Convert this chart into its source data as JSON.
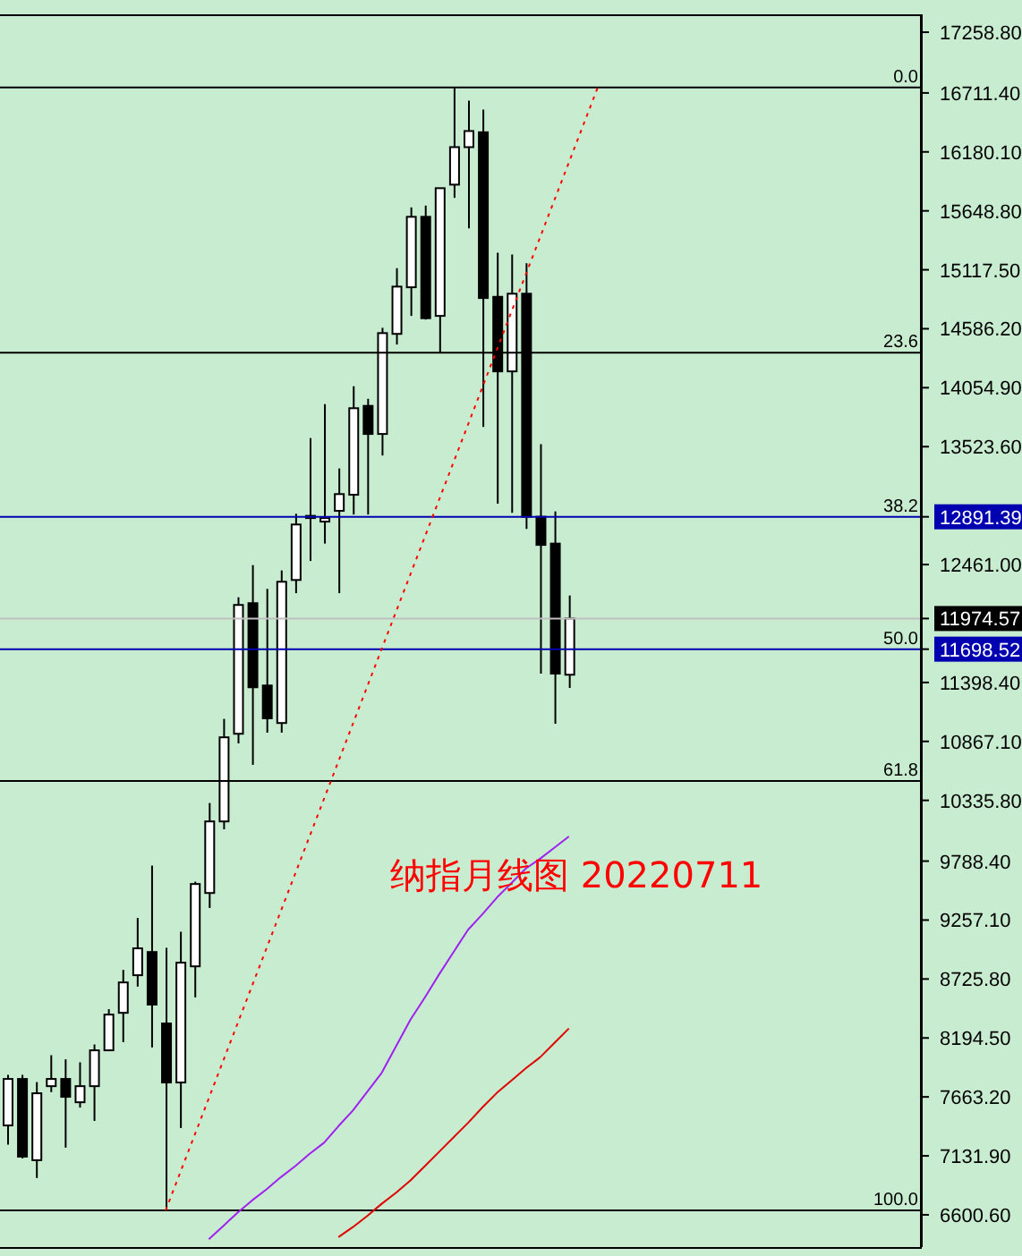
{
  "chart_data": {
    "type": "candlestick",
    "title": "纳指月线图 20220711",
    "categories": [
      null,
      null,
      null,
      null,
      null,
      null,
      null,
      null,
      null,
      null,
      null,
      null,
      null,
      null,
      null,
      null,
      null,
      null,
      null,
      null,
      null,
      null,
      null,
      null,
      null,
      null,
      null,
      null,
      null,
      null,
      null,
      null,
      null,
      null,
      null,
      null,
      null,
      null,
      null,
      null,
      null,
      null,
      null,
      null,
      null,
      null,
      null,
      null,
      null,
      null,
      null,
      null,
      null,
      null,
      null,
      null,
      null,
      null,
      null,
      null,
      null,
      null,
      null,
      null
    ],
    "ohlc": [
      [
        7406,
        7862,
        7233,
        7825
      ],
      [
        7825,
        7862,
        7109,
        7125
      ],
      [
        7093,
        7797,
        6932,
        7696
      ],
      [
        7760,
        8039,
        7706,
        7825
      ],
      [
        7825,
        8002,
        7206,
        7664
      ],
      [
        7615,
        7975,
        7567,
        7760
      ],
      [
        7760,
        8136,
        7447,
        8083
      ],
      [
        8083,
        8454,
        8083,
        8405
      ],
      [
        8421,
        8808,
        8157,
        8695
      ],
      [
        8760,
        9276,
        8657,
        9002
      ],
      [
        8969,
        9748,
        8109,
        8495
      ],
      [
        8325,
        9007,
        6640,
        7793
      ],
      [
        7793,
        9152,
        7383,
        8873
      ],
      [
        8840,
        9603,
        8560,
        9582
      ],
      [
        9501,
        10312,
        9366,
        10146
      ],
      [
        10146,
        11070,
        10075,
        10904
      ],
      [
        10936,
        12166,
        10849,
        12097
      ],
      [
        12113,
        12456,
        10656,
        11355
      ],
      [
        11371,
        12242,
        10946,
        11075
      ],
      [
        11033,
        12408,
        10946,
        12306
      ],
      [
        12322,
        12919,
        12203,
        12822
      ],
      [
        12880,
        13601,
        12493,
        12900
      ],
      [
        12848,
        13907,
        12650,
        12880
      ],
      [
        12945,
        13327,
        12203,
        13096
      ],
      [
        13090,
        14068,
        12912,
        13870
      ],
      [
        13891,
        13955,
        12912,
        13638
      ],
      [
        13638,
        14595,
        13444,
        14547
      ],
      [
        14540,
        15132,
        14444,
        14966
      ],
      [
        14960,
        15680,
        14702,
        15595
      ],
      [
        15595,
        15696,
        14669,
        14681
      ],
      [
        14702,
        15853,
        14370,
        15853
      ],
      [
        15885,
        16760,
        15766,
        16223
      ],
      [
        16223,
        16642,
        15491,
        16368
      ],
      [
        16357,
        16562,
        13702,
        14863
      ],
      [
        14874,
        15272,
        13009,
        14202
      ],
      [
        14202,
        15256,
        12928,
        14902
      ],
      [
        14902,
        15176,
        12783,
        12892
      ],
      [
        12892,
        13547,
        11478,
        12638
      ],
      [
        12650,
        12940,
        11026,
        11478
      ],
      [
        11468,
        12182,
        11349,
        11975
      ],
      null,
      null,
      null,
      null,
      null,
      null,
      null,
      null,
      null,
      null,
      null,
      null,
      null,
      null,
      null,
      null,
      null,
      null,
      null,
      null,
      null,
      null,
      null,
      null
    ],
    "series": [
      {
        "type": "line",
        "color": "#a020f0",
        "values": [
          null,
          null,
          null,
          null,
          null,
          null,
          null,
          null,
          null,
          null,
          null,
          null,
          null,
          null,
          6380,
          6500,
          6620,
          6730,
          6830,
          6940,
          7040,
          7150,
          7250,
          7400,
          7540,
          7710,
          7880,
          8120,
          8360,
          8560,
          8770,
          8970,
          9170,
          9310,
          9460,
          9590,
          9720,
          9810,
          9910,
          10010,
          null,
          null,
          null,
          null,
          null,
          null,
          null,
          null,
          null,
          null,
          null,
          null,
          null,
          null,
          null,
          null,
          null,
          null,
          null,
          null,
          null,
          null,
          null,
          null
        ]
      },
      {
        "type": "line",
        "color": "#e00000",
        "values": [
          null,
          null,
          null,
          null,
          null,
          null,
          null,
          null,
          null,
          null,
          null,
          null,
          null,
          null,
          null,
          null,
          null,
          null,
          null,
          null,
          null,
          null,
          null,
          6400,
          6490,
          6590,
          6700,
          6800,
          6910,
          7040,
          7170,
          7300,
          7430,
          7570,
          7700,
          7810,
          7920,
          8020,
          8150,
          8280,
          null,
          null,
          null,
          null,
          null,
          null,
          null,
          null,
          null,
          null,
          null,
          null,
          null,
          null,
          null,
          null,
          null,
          null,
          null,
          null,
          null,
          null,
          null,
          null
        ]
      },
      {
        "type": "line",
        "color": "#ff0000",
        "line_style": "dotted",
        "values": [
          null,
          null,
          null,
          null,
          null,
          null,
          null,
          null,
          null,
          null,
          null,
          6640,
          null,
          null,
          null,
          null,
          null,
          null,
          null,
          null,
          null,
          null,
          null,
          null,
          null,
          null,
          null,
          null,
          null,
          null,
          null,
          null,
          null,
          null,
          null,
          null,
          null,
          null,
          null,
          null,
          null,
          16760,
          null,
          null,
          null,
          null,
          null,
          null,
          null,
          null,
          null,
          null,
          null,
          null,
          null,
          null,
          null,
          null,
          null,
          null,
          null,
          null,
          null,
          null
        ]
      }
    ],
    "ylim": [
      6310,
      17420
    ],
    "yticks": [
      {
        "value": 17258.8,
        "label": "17258.80"
      },
      {
        "value": 16711.4,
        "label": "16711.40"
      },
      {
        "value": 16180.1,
        "label": "16180.10"
      },
      {
        "value": 15648.8,
        "label": "15648.80"
      },
      {
        "value": 15117.5,
        "label": "15117.50"
      },
      {
        "value": 14586.2,
        "label": "14586.20"
      },
      {
        "value": 14054.9,
        "label": "14054.90"
      },
      {
        "value": 13523.6,
        "label": "13523.60"
      },
      {
        "value": 12891.39,
        "label": "12891.39"
      },
      {
        "value": 12461,
        "label": "12461.00"
      },
      {
        "value": 11974.57,
        "label": "11974.57"
      },
      {
        "value": 11698.52,
        "label": "11698.52"
      },
      {
        "value": 11398.4,
        "label": "11398.40"
      },
      {
        "value": 10867.1,
        "label": "10867.10"
      },
      {
        "value": 10335.8,
        "label": "10335.80"
      },
      {
        "value": 9788.4,
        "label": "9788.40"
      },
      {
        "value": 9257.1,
        "label": "9257.10"
      },
      {
        "value": 8725.8,
        "label": "8725.80"
      },
      {
        "value": 8194.5,
        "label": "8194.50"
      },
      {
        "value": 7663.2,
        "label": "7663.20"
      },
      {
        "value": 7131.9,
        "label": "7131.90"
      },
      {
        "value": 6600.6,
        "label": "6600.60"
      }
    ],
    "ref_lines": [
      {
        "axis": "y",
        "value": 16760,
        "color": "#000000"
      },
      {
        "axis": "y",
        "value": 14370,
        "color": "#000000"
      },
      {
        "axis": "y",
        "value": 12891.39,
        "color": "#0000b0"
      },
      {
        "axis": "y",
        "value": 11974.57,
        "color": "#c0c0c0"
      },
      {
        "axis": "y",
        "value": 11698.52,
        "color": "#0000b0"
      },
      {
        "axis": "y",
        "value": 10510,
        "color": "#000000"
      },
      {
        "axis": "y",
        "value": 6640,
        "color": "#000000"
      }
    ],
    "annotations": [
      {
        "text": "0.0",
        "y": 16760
      },
      {
        "text": "23.6",
        "y": 14370
      },
      {
        "text": "38.2",
        "y": 12891.39
      },
      {
        "text": "50.0",
        "y": 11698.52
      },
      {
        "text": "61.8",
        "y": 10510
      },
      {
        "text": "100.0",
        "y": 6640
      }
    ],
    "tick_labels": "y",
    "legend": false
  }
}
